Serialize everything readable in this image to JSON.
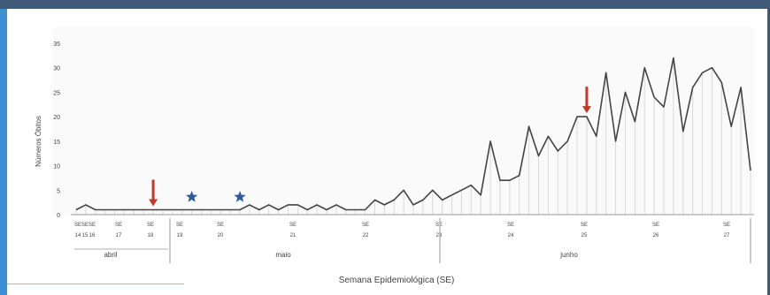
{
  "chart_data": {
    "type": "line",
    "title": "",
    "xlabel": "Semana Epidemiológica (SE)",
    "ylabel": "Números Óbitos",
    "ylim": [
      0,
      35
    ],
    "yticks": [
      "0",
      "5",
      "10",
      "15",
      "20",
      "25",
      "30",
      "35"
    ],
    "grid": false,
    "series": [
      {
        "values": [
          1,
          2,
          1,
          1,
          1,
          1,
          1,
          1,
          1,
          1,
          1,
          1,
          1,
          1,
          1,
          1,
          1,
          1,
          2,
          1,
          2,
          1,
          2,
          2,
          1,
          2,
          1,
          2,
          1,
          1,
          1,
          3,
          2,
          3,
          5,
          2,
          3,
          5,
          3,
          4,
          5,
          6,
          4,
          15,
          7,
          7,
          8,
          18,
          12,
          16,
          13,
          15,
          20,
          20,
          16,
          29,
          15,
          25,
          19,
          30,
          24,
          22,
          32,
          17,
          26,
          29,
          30,
          27,
          18,
          26,
          9
        ]
      }
    ],
    "week_labels": [
      {
        "se": "SE",
        "n": "14"
      },
      {
        "se": "SE",
        "n": "15"
      },
      {
        "se": "SE",
        "n": "16"
      },
      {
        "se": "SE",
        "n": "17"
      },
      {
        "se": "SE",
        "n": "18"
      },
      {
        "se": "SE",
        "n": "19"
      },
      {
        "se": "SE",
        "n": "20"
      },
      {
        "se": "SE",
        "n": "21"
      },
      {
        "se": "SE",
        "n": "22"
      },
      {
        "se": "SE",
        "n": "23"
      },
      {
        "se": "SE",
        "n": "24"
      },
      {
        "se": "SE",
        "n": "25"
      },
      {
        "se": "SE",
        "n": "26"
      },
      {
        "se": "SE",
        "n": "27"
      }
    ],
    "months": [
      "abril",
      "maio",
      "junho"
    ],
    "annotations": [
      {
        "type": "arrow",
        "index": 8,
        "color": "#c0392b"
      },
      {
        "type": "star",
        "index": 12,
        "color": "#2e5c9a"
      },
      {
        "type": "star",
        "index": 17,
        "color": "#2e5c9a"
      },
      {
        "type": "arrow",
        "index": 53,
        "color": "#c0392b"
      }
    ],
    "line_color": "#444444"
  }
}
